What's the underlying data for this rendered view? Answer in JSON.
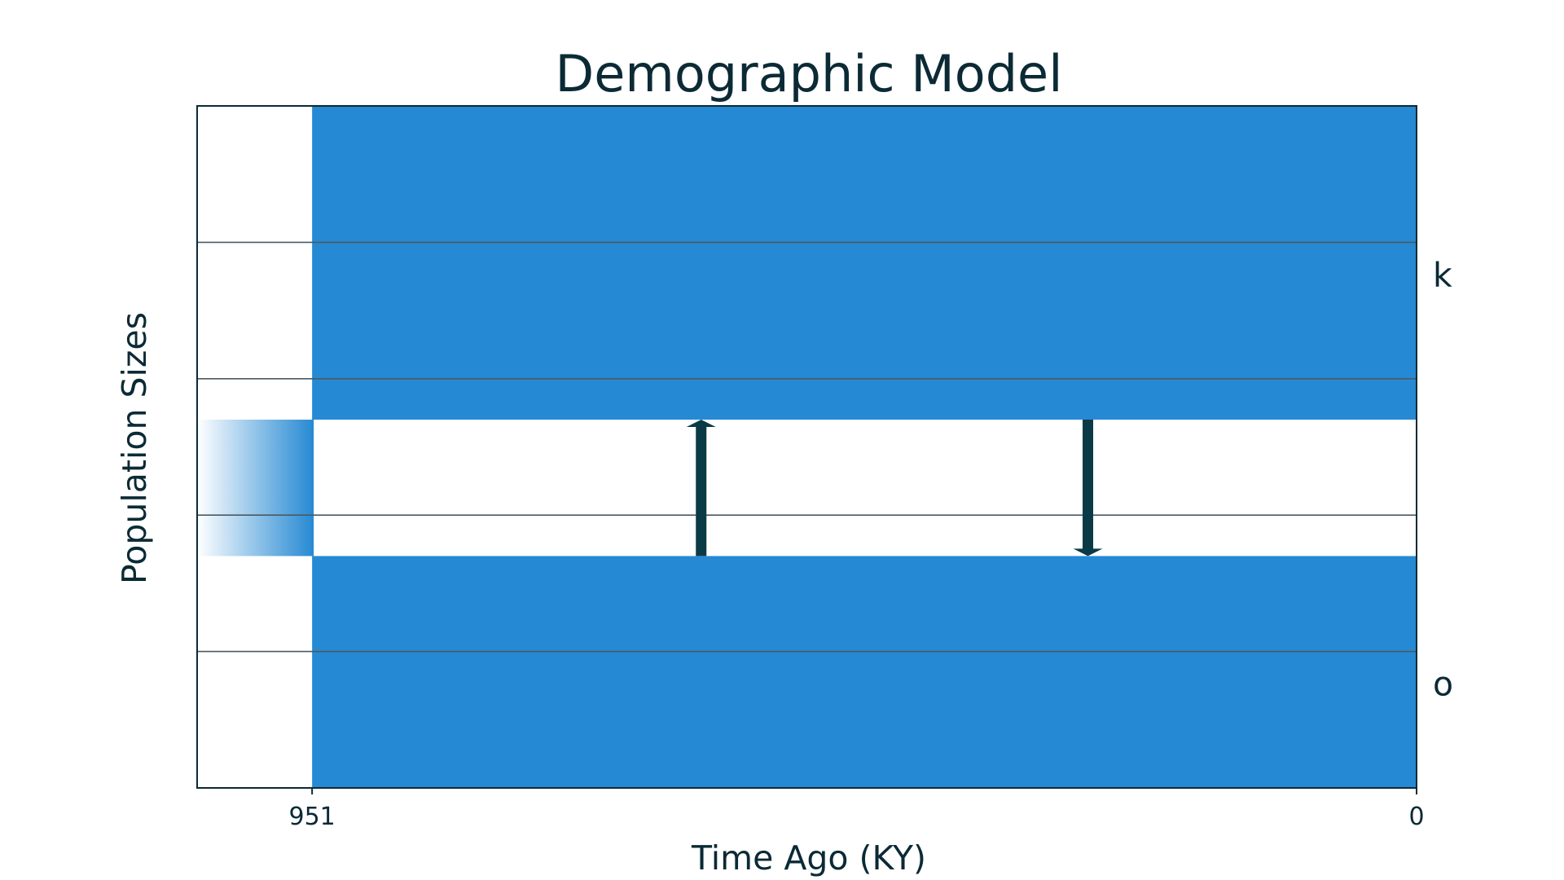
{
  "chart_data": {
    "type": "demographic-model",
    "title": "Demographic Model",
    "xlabel": "Time Ago (KY)",
    "ylabel": "Population Sizes",
    "x_axis": {
      "direction": "reversed",
      "ticks": [
        951,
        0
      ],
      "xlim": [
        1050,
        0
      ]
    },
    "grid": true,
    "populations": [
      {
        "name": "k",
        "start": 951,
        "end": 0,
        "color": "#2689d3"
      },
      {
        "name": "o",
        "start": 951,
        "end": 0,
        "color": "#2689d3"
      }
    ],
    "ancestral_population": {
      "end": 951,
      "color": "#2689d3",
      "fade": "gradient"
    },
    "migrations": [
      {
        "time": 616,
        "from": "o",
        "to": "k",
        "direction": "up"
      },
      {
        "time": 283,
        "from": "k",
        "to": "o",
        "direction": "down"
      }
    ],
    "colors": {
      "population": "#2689d3",
      "arrow": "#0b3a47",
      "text": "#0b2a35",
      "grid": "#4a5a62"
    }
  }
}
